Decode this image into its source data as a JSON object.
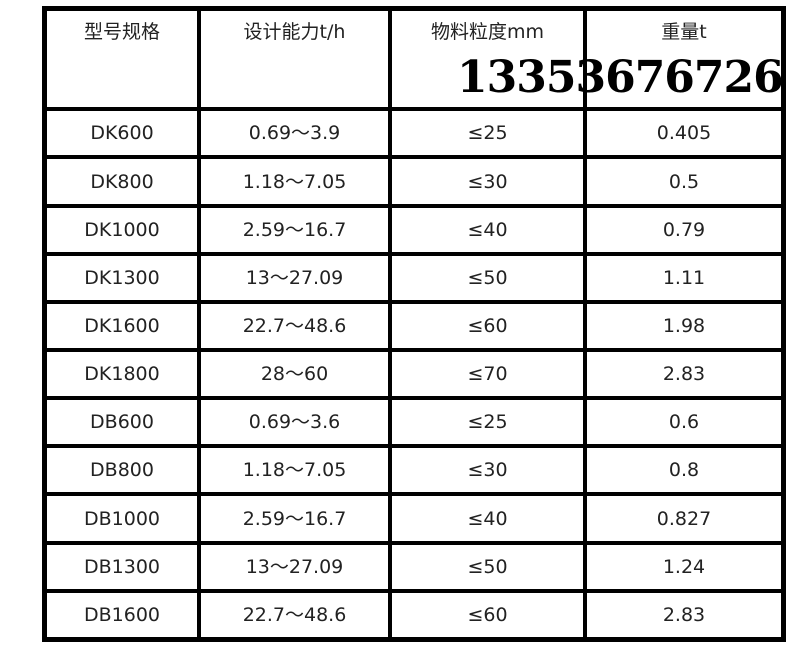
{
  "table": {
    "headers": [
      "型号规格",
      "设计能力t/h",
      "物料粒度mm",
      "重量t"
    ],
    "rows": [
      [
        "DK600",
        "0.69～3.9",
        "≤25",
        "0.405"
      ],
      [
        "DK800",
        "1.18～7.05",
        "≤30",
        "0.5"
      ],
      [
        "DK1000",
        "2.59～16.7",
        "≤40",
        "0.79"
      ],
      [
        "DK1300",
        "13～27.09",
        "≤50",
        "1.11"
      ],
      [
        "DK1600",
        "22.7～48.6",
        "≤60",
        "1.98"
      ],
      [
        "DK1800",
        "28～60",
        "≤70",
        "2.83"
      ],
      [
        "DB600",
        "0.69～3.6",
        "≤25",
        "0.6"
      ],
      [
        "DB800",
        "1.18～7.05",
        "≤30",
        "0.8"
      ],
      [
        "DB1000",
        "2.59～16.7",
        "≤40",
        "0.827"
      ],
      [
        "DB1300",
        "13～27.09",
        "≤50",
        "1.24"
      ],
      [
        "DB1600",
        "22.7～48.6",
        "≤60",
        "2.83"
      ]
    ]
  },
  "watermark": "13353676726"
}
